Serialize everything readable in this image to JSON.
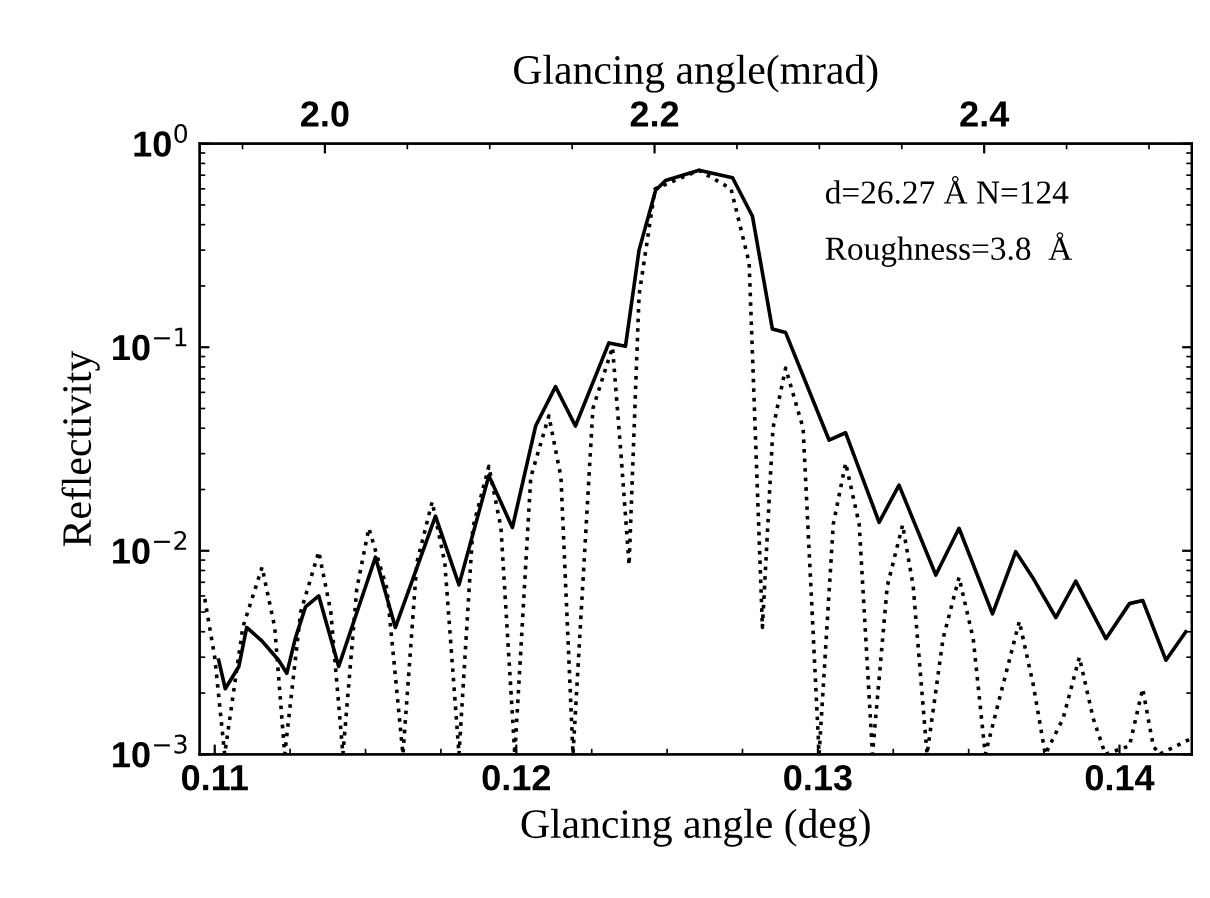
{
  "chart_data": {
    "type": "line",
    "xlabel": "Glancing angle (deg)",
    "ylabel": "Reflectivity",
    "x2label": "Glancing angle(mrad)",
    "annotations": [
      "d=26.27 Å N=124",
      "Roughness=3.8  Å"
    ],
    "log": "y",
    "grid": false,
    "marker": "none",
    "xlim": [
      0.1095,
      0.1424
    ],
    "xticks": [
      0.11,
      0.12,
      0.13,
      0.14
    ],
    "x2lim": [
      1.924,
      2.526
    ],
    "x2ticks": [
      {
        "value": 2.0,
        "label": "2.0"
      },
      2.2,
      2.4
    ],
    "ylim": [
      0.001,
      1
    ],
    "yticks": [
      {
        "value": 0.001,
        "label": "10$^{−3}$"
      },
      {
        "value": 0.01,
        "label": "10$^{−2}$"
      },
      {
        "value": 0.1,
        "label": "10$^{−1}$"
      },
      {
        "value": 1,
        "label": "10$^{0}$"
      }
    ],
    "series": [
      {
        "color": "#000000",
        "line_style": "solid",
        "x": [
          0.11013,
          0.11035,
          0.1108,
          0.11106,
          0.11157,
          0.11212,
          0.11239,
          0.11267,
          0.11301,
          0.11345,
          0.11411,
          0.11533,
          0.11599,
          0.11732,
          0.1181,
          0.11909,
          0.11987,
          0.12064,
          0.1213,
          0.12196,
          0.12307,
          0.12362,
          0.12407,
          0.12462,
          0.12495,
          0.12606,
          0.12717,
          0.12783,
          0.12849,
          0.12893,
          0.13037,
          0.13092,
          0.13203,
          0.13269,
          0.13391,
          0.13468,
          0.13579,
          0.13656,
          0.13712,
          0.13789,
          0.13855,
          0.13955,
          0.14033,
          0.14077,
          0.14154,
          0.1422
        ],
        "values": [
          0.0029,
          0.0021,
          0.0027,
          0.0042,
          0.0036,
          0.0029,
          0.0025,
          0.0037,
          0.0053,
          0.006,
          0.0027,
          0.0093,
          0.0042,
          0.0148,
          0.0068,
          0.0234,
          0.013,
          0.041,
          0.064,
          0.041,
          0.105,
          0.101,
          0.3,
          0.59,
          0.66,
          0.74,
          0.68,
          0.44,
          0.123,
          0.118,
          0.035,
          0.038,
          0.0138,
          0.021,
          0.0076,
          0.0129,
          0.0049,
          0.0099,
          0.0074,
          0.0047,
          0.0071,
          0.0037,
          0.0055,
          0.0057,
          0.0029,
          0.004
        ]
      },
      {
        "color": "#000000",
        "line_style": "dotted",
        "x": [
          0.10967,
          0.11,
          0.11033,
          0.11093,
          0.11157,
          0.11199,
          0.11232,
          0.11285,
          0.11345,
          0.11385,
          0.11425,
          0.11471,
          0.11511,
          0.11571,
          0.11624,
          0.1167,
          0.11721,
          0.11763,
          0.1181,
          0.11856,
          0.11909,
          0.11949,
          0.11995,
          0.12048,
          0.12108,
          0.12148,
          0.12188,
          0.12254,
          0.12319,
          0.12347,
          0.12374,
          0.12407,
          0.1246,
          0.12606,
          0.12712,
          0.12772,
          0.12816,
          0.12851,
          0.12893,
          0.12951,
          0.13004,
          0.13051,
          0.13092,
          0.13137,
          0.13181,
          0.1323,
          0.13281,
          0.13316,
          0.13362,
          0.13415,
          0.13468,
          0.13515,
          0.13555,
          0.13614,
          0.13668,
          0.13714,
          0.13754,
          0.13813,
          0.13867,
          0.13913,
          0.13953,
          0.14033,
          0.14077,
          0.14112,
          0.14132,
          0.1424
        ],
        "values": [
          0.0058,
          0.003,
          0.001,
          0.0042,
          0.0083,
          0.0042,
          0.001,
          0.005,
          0.0099,
          0.005,
          0.001,
          0.0065,
          0.0129,
          0.0065,
          0.001,
          0.0087,
          0.0174,
          0.0087,
          0.001,
          0.013,
          0.026,
          0.013,
          0.001,
          0.023,
          0.046,
          0.023,
          0.001,
          0.05,
          0.1,
          0.03,
          0.0085,
          0.18,
          0.6,
          0.74,
          0.6,
          0.26,
          0.0042,
          0.04,
          0.079,
          0.04,
          0.001,
          0.0135,
          0.027,
          0.0135,
          0.001,
          0.0067,
          0.0134,
          0.0067,
          0.001,
          0.0037,
          0.0074,
          0.0037,
          0.001,
          0.0022,
          0.0045,
          0.0022,
          0.001,
          0.0015,
          0.003,
          0.0015,
          0.001,
          0.0011,
          0.0021,
          0.0011,
          0.001,
          0.0012
        ]
      }
    ]
  }
}
